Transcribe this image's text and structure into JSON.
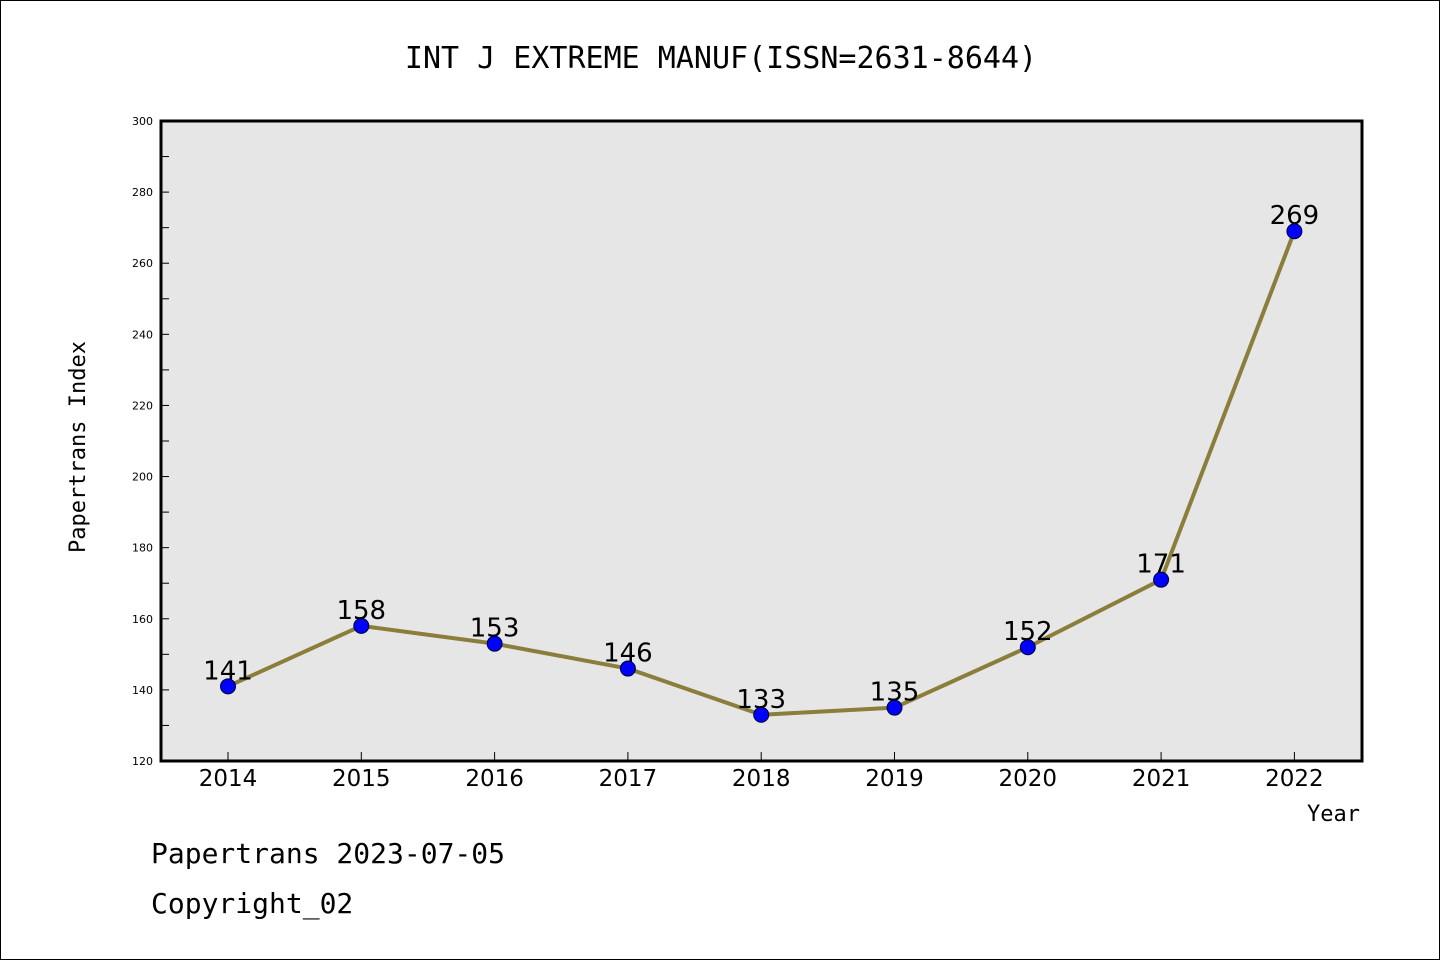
{
  "footer": {
    "line1": "Papertrans 2023-07-05",
    "line2": "Copyright_02"
  },
  "chart_data": {
    "type": "line",
    "title": "INT J EXTREME MANUF(ISSN=2631-8644)",
    "xlabel": "Year",
    "ylabel": "Papertrans Index",
    "categories": [
      "2014",
      "2015",
      "2016",
      "2017",
      "2018",
      "2019",
      "2020",
      "2021",
      "2022"
    ],
    "series": [
      {
        "values": [
          141,
          158,
          153,
          146,
          133,
          135,
          152,
          171,
          269
        ]
      }
    ],
    "ylim": [
      120,
      300
    ],
    "yticks": [
      120,
      140,
      160,
      180,
      200,
      220,
      240,
      260,
      280,
      300
    ],
    "grid": false,
    "data_labels": true,
    "colors": {
      "line": "#8b7d3a",
      "marker": "#0000ff",
      "plot_background": "#e6e6e6",
      "axis": "#000000"
    }
  }
}
